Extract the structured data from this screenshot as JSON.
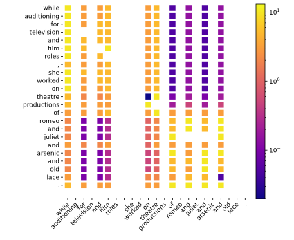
{
  "chart_data": {
    "type": "heatmap",
    "title": "",
    "xlabel": "",
    "ylabel": "",
    "color_scale": "log",
    "colormap": "plasma",
    "vmin": 0.02,
    "vmax": 13,
    "colorbar_ticks": [
      {
        "value": 10,
        "label": "10¹",
        "exp": "1"
      },
      {
        "value": 1,
        "label": "10⁰",
        "exp": "0"
      },
      {
        "value": 0.1,
        "label": "10⁻",
        "exp": "−"
      }
    ],
    "y_tokens": [
      "while",
      "auditioning",
      "for",
      "television",
      "and",
      "film",
      "roles",
      ",",
      "she",
      "worked",
      "on",
      "theatre",
      "productions",
      "of",
      "romeo",
      "and",
      "juliet",
      "and",
      "arsenic",
      "and",
      "old",
      "lace",
      "."
    ],
    "x_tokens": [
      "while",
      "auditioning",
      "for",
      "television",
      "and",
      "film",
      "roles",
      ",",
      "she",
      "worked",
      "on",
      "theatre",
      "productions",
      "of",
      "romeo",
      "and",
      "juliet",
      "and",
      "arsenic",
      "and",
      "old",
      "lace",
      "."
    ],
    "note_values": "rows follow y_tokens, columns follow x_tokens; null = no marker",
    "values": [
      [
        10,
        null,
        3,
        null,
        3,
        5,
        null,
        null,
        null,
        null,
        3,
        5,
        null,
        0.05,
        null,
        0.15,
        null,
        0.05,
        null,
        0.15,
        null,
        null,
        null
      ],
      [
        10,
        null,
        3,
        null,
        3,
        5,
        null,
        null,
        null,
        null,
        3,
        5,
        null,
        0.05,
        null,
        0.15,
        null,
        0.05,
        null,
        0.15,
        null,
        null,
        null
      ],
      [
        10,
        null,
        3,
        null,
        5,
        5,
        null,
        null,
        null,
        null,
        3,
        5,
        null,
        0.05,
        null,
        0.15,
        null,
        0.05,
        null,
        0.15,
        null,
        null,
        null
      ],
      [
        10,
        null,
        null,
        null,
        5,
        5,
        null,
        null,
        null,
        null,
        3,
        5,
        null,
        0.05,
        null,
        0.15,
        null,
        0.05,
        null,
        0.15,
        null,
        null,
        null
      ],
      [
        10,
        null,
        5,
        null,
        5,
        5,
        null,
        null,
        null,
        null,
        3,
        5,
        null,
        0.05,
        null,
        0.15,
        null,
        0.05,
        null,
        0.15,
        null,
        null,
        null
      ],
      [
        10,
        null,
        5,
        null,
        null,
        10,
        null,
        null,
        null,
        null,
        3,
        5,
        null,
        0.05,
        null,
        0.15,
        null,
        0.05,
        null,
        0.15,
        null,
        null,
        null
      ],
      [
        10,
        null,
        3,
        null,
        5,
        null,
        null,
        null,
        null,
        null,
        3,
        5,
        null,
        0.05,
        null,
        0.15,
        null,
        0.05,
        null,
        0.15,
        null,
        null,
        null
      ],
      [
        5,
        null,
        3,
        null,
        3,
        5,
        null,
        null,
        null,
        null,
        3,
        5,
        null,
        0.05,
        null,
        0.15,
        null,
        0.05,
        null,
        0.15,
        null,
        null,
        null
      ],
      [
        10,
        null,
        5,
        null,
        5,
        5,
        null,
        null,
        null,
        null,
        3,
        5,
        null,
        0.05,
        null,
        0.15,
        null,
        0.05,
        null,
        0.15,
        null,
        null,
        null
      ],
      [
        10,
        null,
        3,
        null,
        5,
        5,
        null,
        null,
        null,
        null,
        3,
        5,
        null,
        0.05,
        null,
        0.15,
        null,
        0.05,
        null,
        0.15,
        null,
        null,
        null
      ],
      [
        10,
        null,
        3,
        null,
        3,
        5,
        null,
        null,
        null,
        null,
        3,
        5,
        null,
        0.05,
        null,
        0.15,
        null,
        0.05,
        null,
        0.15,
        null,
        null,
        null
      ],
      [
        5,
        null,
        2,
        null,
        2,
        3,
        null,
        null,
        null,
        null,
        0.02,
        10,
        null,
        0.1,
        null,
        0.2,
        null,
        0.1,
        null,
        0.2,
        null,
        null,
        null
      ],
      [
        5,
        null,
        3,
        null,
        3,
        3,
        null,
        null,
        null,
        null,
        10,
        null,
        null,
        0.2,
        null,
        0.5,
        null,
        0.2,
        null,
        0.5,
        null,
        null,
        null
      ],
      [
        3,
        null,
        3,
        null,
        3,
        5,
        null,
        null,
        null,
        null,
        3,
        10,
        null,
        3,
        null,
        3,
        null,
        3,
        null,
        3,
        null,
        null,
        null
      ],
      [
        2,
        null,
        0.1,
        null,
        0.1,
        0.3,
        null,
        null,
        null,
        null,
        1,
        2,
        null,
        5,
        null,
        10,
        null,
        5,
        null,
        10,
        null,
        null,
        null
      ],
      [
        2,
        null,
        0.1,
        null,
        0.1,
        0.3,
        null,
        null,
        null,
        null,
        1,
        2,
        null,
        5,
        null,
        10,
        null,
        5,
        null,
        10,
        null,
        null,
        null
      ],
      [
        2,
        null,
        0.1,
        null,
        0.1,
        0.3,
        null,
        null,
        null,
        null,
        1,
        2,
        null,
        10,
        null,
        null,
        null,
        null,
        null,
        10,
        null,
        null,
        null
      ],
      [
        3,
        null,
        2,
        null,
        2,
        3,
        null,
        null,
        null,
        null,
        1,
        3,
        null,
        3,
        null,
        3,
        null,
        3,
        null,
        3,
        null,
        null,
        null
      ],
      [
        2,
        null,
        0.1,
        null,
        0.1,
        0.3,
        null,
        null,
        null,
        null,
        0.5,
        1,
        null,
        10,
        null,
        3,
        null,
        10,
        null,
        10,
        null,
        null,
        null
      ],
      [
        2,
        null,
        0.1,
        null,
        0.1,
        0.3,
        null,
        null,
        null,
        null,
        0.5,
        1,
        null,
        5,
        null,
        5,
        null,
        10,
        null,
        5,
        null,
        null,
        null
      ],
      [
        2,
        null,
        0.1,
        null,
        0.1,
        0.3,
        null,
        null,
        null,
        null,
        0.5,
        1,
        null,
        5,
        null,
        3,
        null,
        10,
        null,
        5,
        null,
        null,
        null
      ],
      [
        3,
        null,
        0.1,
        null,
        0.1,
        0.3,
        null,
        null,
        null,
        null,
        2,
        2,
        null,
        3,
        null,
        5,
        null,
        5,
        null,
        0.05,
        null,
        null,
        null
      ],
      [
        5,
        null,
        3,
        null,
        3,
        3,
        null,
        null,
        null,
        null,
        3,
        3,
        null,
        10,
        null,
        10,
        null,
        10,
        null,
        10,
        null,
        null,
        null
      ]
    ]
  }
}
